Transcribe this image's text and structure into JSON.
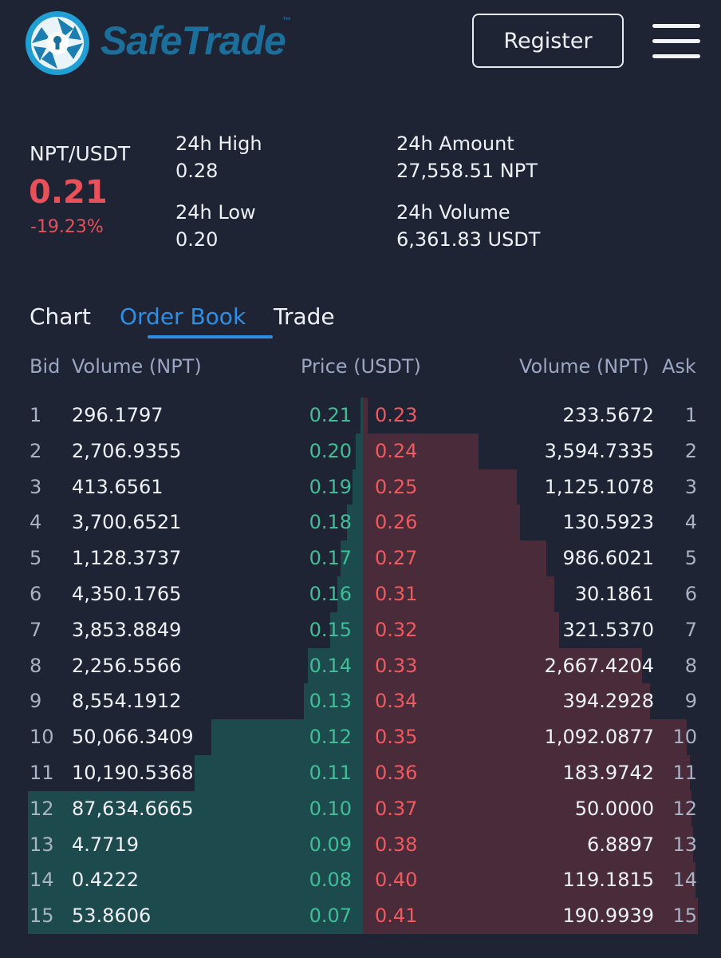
{
  "header": {
    "brand": "SafeTrade",
    "trademark": "™",
    "register_label": "Register"
  },
  "ticker": {
    "pair": "NPT/USDT",
    "last_price": "0.21",
    "change": "-19.23%",
    "high_label": "24h High",
    "high_value": "0.28",
    "low_label": "24h Low",
    "low_value": "0.20",
    "amount_label": "24h Amount",
    "amount_value": "27,558.51 NPT",
    "volume_label": "24h Volume",
    "volume_value": "6,361.83 USDT"
  },
  "tabs": [
    {
      "label": "Chart",
      "active": false
    },
    {
      "label": "Order Book",
      "active": true
    },
    {
      "label": "Trade",
      "active": false
    }
  ],
  "orderbook": {
    "headers": {
      "bid": "Bid",
      "bid_volume": "Volume (NPT)",
      "price": "Price (USDT)",
      "ask_volume": "Volume (NPT)",
      "ask": "Ask"
    },
    "rows": [
      {
        "bid": "1",
        "bid_volume": "296.1797",
        "bid_price": "0.21",
        "ask_price": "0.23",
        "ask_volume": "233.5672",
        "ask": "1",
        "bid_depth": 0.008,
        "ask_depth": 0.015
      },
      {
        "bid": "2",
        "bid_volume": "2,706.9355",
        "bid_price": "0.20",
        "ask_price": "0.24",
        "ask_volume": "3,594.7335",
        "ask": "2",
        "bid_depth": 0.021,
        "ask_depth": 0.345
      },
      {
        "bid": "3",
        "bid_volume": "413.6561",
        "bid_price": "0.19",
        "ask_price": "0.25",
        "ask_volume": "1,125.1078",
        "ask": "3",
        "bid_depth": 0.032,
        "ask_depth": 0.459
      },
      {
        "bid": "4",
        "bid_volume": "3,700.6521",
        "bid_price": "0.18",
        "ask_price": "0.26",
        "ask_volume": "130.5923",
        "ask": "4",
        "bid_depth": 0.048,
        "ask_depth": 0.47
      },
      {
        "bid": "5",
        "bid_volume": "1,128.3737",
        "bid_price": "0.17",
        "ask_price": "0.27",
        "ask_volume": "986.6021",
        "ask": "5",
        "bid_depth": 0.066,
        "ask_depth": 0.548
      },
      {
        "bid": "6",
        "bid_volume": "4,350.1765",
        "bid_price": "0.16",
        "ask_price": "0.31",
        "ask_volume": "30.1861",
        "ask": "6",
        "bid_depth": 0.077,
        "ask_depth": 0.572
      },
      {
        "bid": "7",
        "bid_volume": "3,853.8849",
        "bid_price": "0.15",
        "ask_price": "0.32",
        "ask_volume": "321.5370",
        "ask": "7",
        "bid_depth": 0.097,
        "ask_depth": 0.585
      },
      {
        "bid": "8",
        "bid_volume": "2,256.5566",
        "bid_price": "0.14",
        "ask_price": "0.33",
        "ask_volume": "2,667.4204",
        "ask": "8",
        "bid_depth": 0.164,
        "ask_depth": 0.834
      },
      {
        "bid": "9",
        "bid_volume": "8,554.1912",
        "bid_price": "0.13",
        "ask_price": "0.34",
        "ask_volume": "394.2928",
        "ask": "9",
        "bid_depth": 0.175,
        "ask_depth": 0.858
      },
      {
        "bid": "10",
        "bid_volume": "50,066.3409",
        "bid_price": "0.12",
        "ask_price": "0.35",
        "ask_volume": "1,092.0877",
        "ask": "10",
        "bid_depth": 0.453,
        "ask_depth": 0.966
      },
      {
        "bid": "11",
        "bid_volume": "10,190.5368",
        "bid_price": "0.11",
        "ask_price": "0.36",
        "ask_volume": "183.9742",
        "ask": "11",
        "bid_depth": 0.502,
        "ask_depth": 0.976
      },
      {
        "bid": "12",
        "bid_volume": "87,634.6665",
        "bid_price": "0.10",
        "ask_price": "0.37",
        "ask_volume": "50.0000",
        "ask": "12",
        "bid_depth": 1.0,
        "ask_depth": 0.98
      },
      {
        "bid": "13",
        "bid_volume": "4.7719",
        "bid_price": "0.09",
        "ask_price": "0.38",
        "ask_volume": "6.8897",
        "ask": "13",
        "bid_depth": 1.0,
        "ask_depth": 0.985
      },
      {
        "bid": "14",
        "bid_volume": "0.4222",
        "bid_price": "0.08",
        "ask_price": "0.40",
        "ask_volume": "119.1815",
        "ask": "14",
        "bid_depth": 1.0,
        "ask_depth": 0.993
      },
      {
        "bid": "15",
        "bid_volume": "53.8606",
        "bid_price": "0.07",
        "ask_price": "0.41",
        "ask_volume": "190.9939",
        "ask": "15",
        "bid_depth": 1.0,
        "ask_depth": 1.0
      }
    ]
  },
  "colors": {
    "background": "#1e2434",
    "accent": "#2e8fe6",
    "bid": "#3fbf98",
    "ask": "#ef5a5f",
    "bid_depth": "#1d4a4d",
    "ask_depth": "#4a2b3a"
  }
}
